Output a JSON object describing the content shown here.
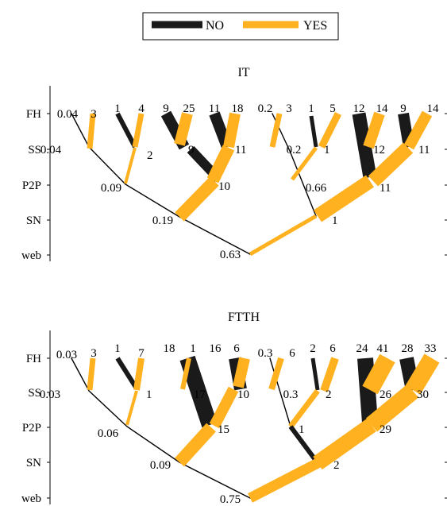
{
  "legend": {
    "items": [
      {
        "label": "NO",
        "color": "#1a1a1a"
      },
      {
        "label": "YES",
        "color": "#ffb120"
      }
    ]
  },
  "levels": [
    "FH",
    "SS",
    "P2P",
    "SN",
    "web"
  ],
  "panels": [
    {
      "title": "IT",
      "root_label": "0.63",
      "sn_labels": [
        "0.19",
        "1"
      ],
      "p2p_labels": [
        "0.09",
        "10",
        "0.66",
        "11"
      ],
      "ss_labels": [
        "0.04",
        "2",
        "9",
        "11",
        "0.2",
        "1",
        "12",
        "11"
      ],
      "fh_labels": [
        "0.04",
        "3",
        "1",
        "4",
        "9",
        "25",
        "11",
        "18",
        "0.2",
        "3",
        "1",
        "5",
        "12",
        "14",
        "9",
        "14"
      ]
    },
    {
      "title": "FTTH",
      "root_label": "0.75",
      "sn_labels": [
        "0.09",
        "2"
      ],
      "p2p_labels": [
        "0.06",
        "15",
        "1",
        "29"
      ],
      "ss_labels": [
        "0.03",
        "1",
        "17",
        "10",
        "0.3",
        "2",
        "26",
        "30"
      ],
      "fh_labels": [
        "0.03",
        "3",
        "1",
        "7",
        "18",
        "1",
        "16",
        "6",
        "0.3",
        "6",
        "2",
        "6",
        "24",
        "41",
        "28",
        "33"
      ]
    }
  ],
  "colors": {
    "no": "#1a1a1a",
    "yes": "#ffb120"
  }
}
